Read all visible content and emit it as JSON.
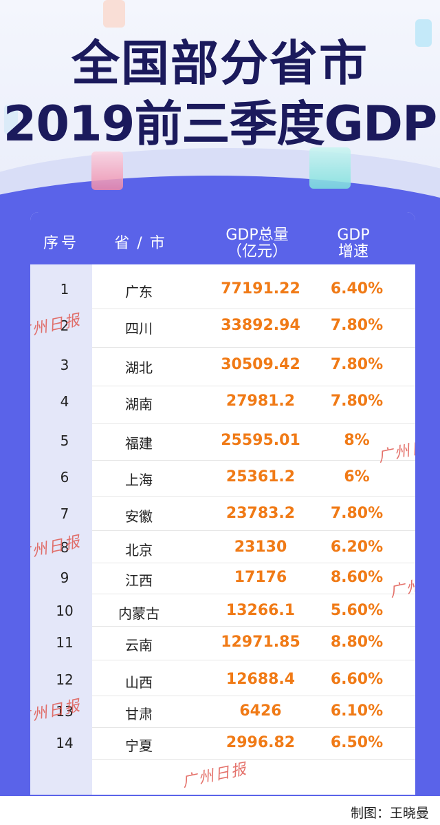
{
  "title_line1": "全国部分省市",
  "title_line2": "2019前三季度GDP",
  "credit": "制图：王晓曼",
  "watermark": "广州日报",
  "colors": {
    "accent": "#5a63e9",
    "value": "#f07a16",
    "title": "#1b1a5c"
  },
  "chart_data": {
    "type": "table",
    "columns": [
      "序号",
      "省/市",
      "GDP总量（亿元）",
      "GDP增速"
    ],
    "headers": {
      "index": "序号",
      "province": "省 / 市",
      "gdp_line1": "GDP总量",
      "gdp_line2": "（亿元）",
      "rate_line1": "GDP",
      "rate_line2": "增速"
    },
    "rows": [
      {
        "index": "1",
        "province": "广东",
        "gdp": "77191.22",
        "rate": "6.40%"
      },
      {
        "index": "2",
        "province": "四川",
        "gdp": "33892.94",
        "rate": "7.80%"
      },
      {
        "index": "3",
        "province": "湖北",
        "gdp": "30509.42",
        "rate": "7.80%"
      },
      {
        "index": "4",
        "province": "湖南",
        "gdp": "27981.2",
        "rate": "7.80%"
      },
      {
        "index": "5",
        "province": "福建",
        "gdp": "25595.01",
        "rate": "8%"
      },
      {
        "index": "6",
        "province": "上海",
        "gdp": "25361.2",
        "rate": "6%"
      },
      {
        "index": "7",
        "province": "安徽",
        "gdp": "23783.2",
        "rate": "7.80%"
      },
      {
        "index": "8",
        "province": "北京",
        "gdp": "23130",
        "rate": "6.20%"
      },
      {
        "index": "9",
        "province": "江西",
        "gdp": "17176",
        "rate": "8.60%"
      },
      {
        "index": "10",
        "province": "内蒙古",
        "gdp": "13266.1",
        "rate": "5.60%"
      },
      {
        "index": "11",
        "province": "云南",
        "gdp": "12971.85",
        "rate": "8.80%"
      },
      {
        "index": "12",
        "province": "山西",
        "gdp": "12688.4",
        "rate": "6.60%"
      },
      {
        "index": "13",
        "province": "甘肃",
        "gdp": "6426",
        "rate": "6.10%"
      },
      {
        "index": "14",
        "province": "宁夏",
        "gdp": "2996.82",
        "rate": "6.50%"
      }
    ]
  }
}
